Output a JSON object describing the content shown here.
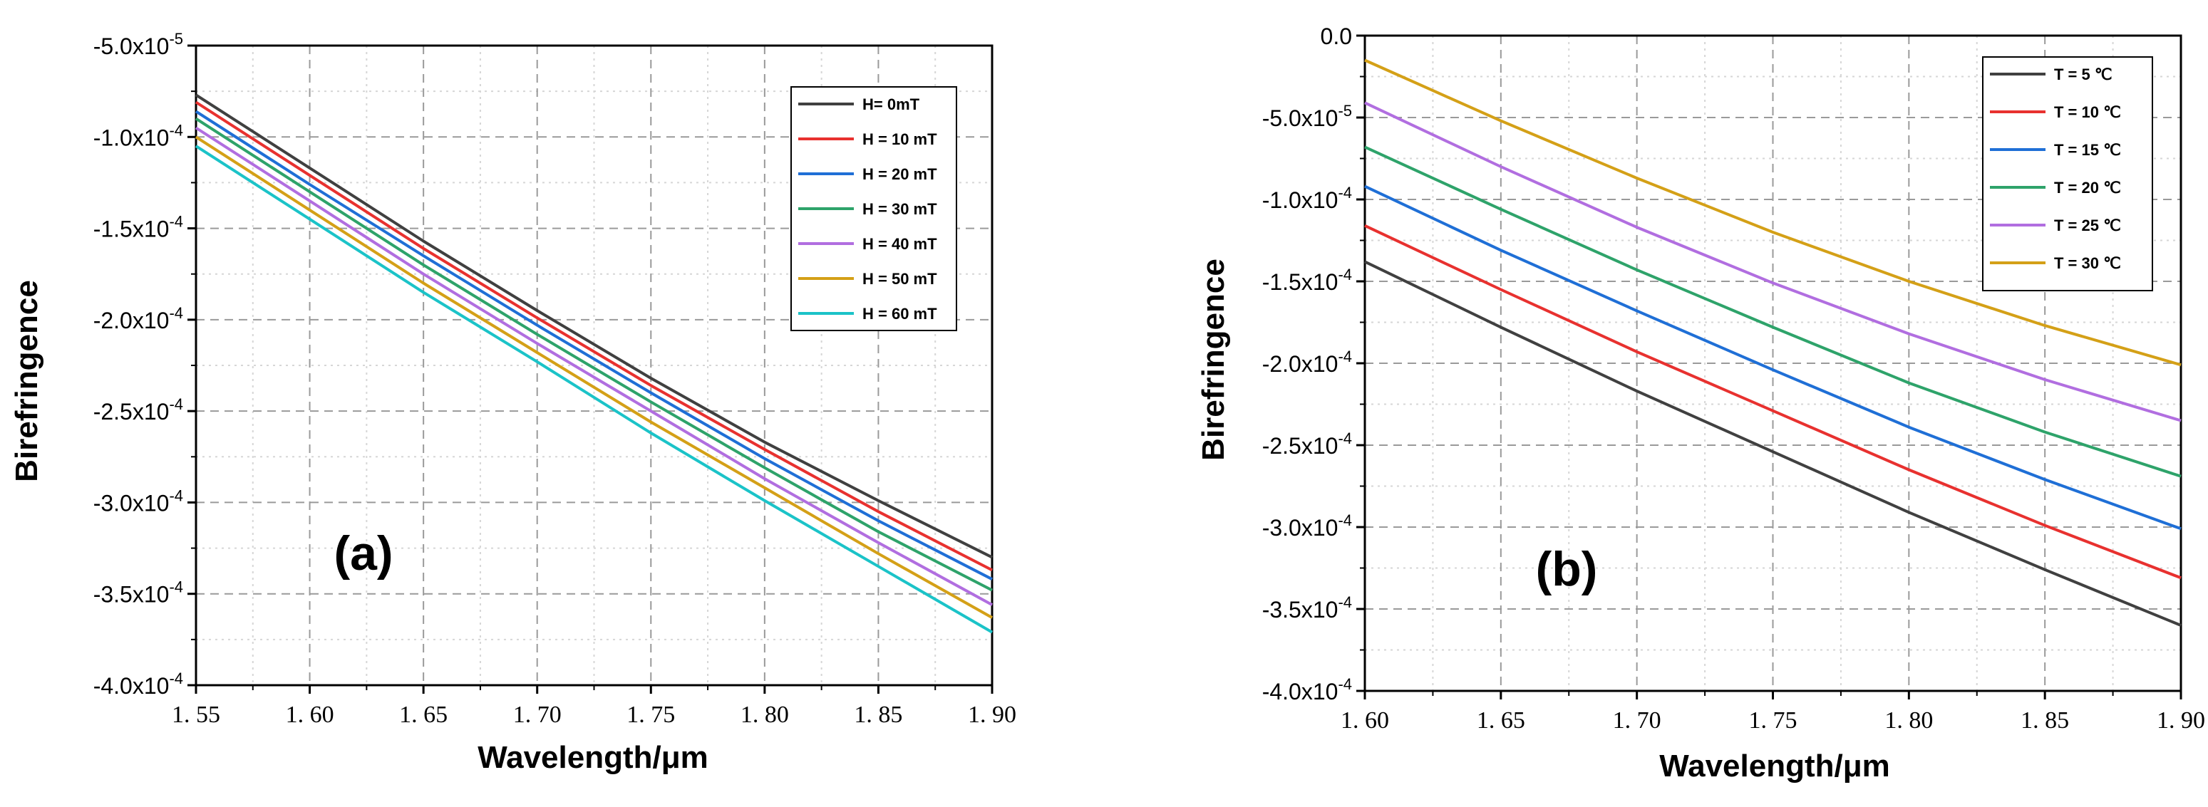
{
  "chart_data": [
    {
      "type": "line",
      "panel_label": "(a)",
      "xlabel": "Wavelength/μm",
      "ylabel": "Birefringence",
      "xlim": [
        1.55,
        1.9
      ],
      "ylim": [
        -0.0004,
        -5e-05
      ],
      "xticks": [
        1.55,
        1.6,
        1.65,
        1.7,
        1.75,
        1.8,
        1.85,
        1.9
      ],
      "xtick_labels": [
        "1. 55",
        "1. 60",
        "1. 65",
        "1. 70",
        "1. 75",
        "1. 80",
        "1. 85",
        "1. 90"
      ],
      "yticks": [
        -5e-05,
        -0.0001,
        -0.00015,
        -0.0002,
        -0.00025,
        -0.0003,
        -0.00035,
        -0.0004
      ],
      "ytick_labels": [
        "-5.0x10-5",
        "-1.0x10-4",
        "-1.5x10-4",
        "-2.0x10-4",
        "-2.5x10-4",
        "-3.0x10-4",
        "-3.5x10-4",
        "-4.0x10-4"
      ],
      "grid": true,
      "legend_position": "top-right",
      "series": [
        {
          "name": "H= 0mT",
          "color": "#404040",
          "x": [
            1.55,
            1.6,
            1.65,
            1.7,
            1.75,
            1.8,
            1.85,
            1.9
          ],
          "values": [
            -7.7e-05,
            -0.000117,
            -0.000157,
            -0.000195,
            -0.000232,
            -0.000267,
            -0.000299,
            -0.00033
          ]
        },
        {
          "name": "H = 10 mT",
          "color": "#e8312f",
          "x": [
            1.55,
            1.6,
            1.65,
            1.7,
            1.75,
            1.8,
            1.85,
            1.9
          ],
          "values": [
            -8.1e-05,
            -0.000121,
            -0.000161,
            -0.000199,
            -0.000236,
            -0.000271,
            -0.000305,
            -0.000337
          ]
        },
        {
          "name": "H = 20 mT",
          "color": "#1f6fd6",
          "x": [
            1.55,
            1.6,
            1.65,
            1.7,
            1.75,
            1.8,
            1.85,
            1.9
          ],
          "values": [
            -8.6e-05,
            -0.000126,
            -0.000165,
            -0.000203,
            -0.00024,
            -0.000276,
            -0.00031,
            -0.000342
          ]
        },
        {
          "name": "H = 30 mT",
          "color": "#2ea36a",
          "x": [
            1.55,
            1.6,
            1.65,
            1.7,
            1.75,
            1.8,
            1.85,
            1.9
          ],
          "values": [
            -9e-05,
            -0.00013,
            -0.00017,
            -0.000208,
            -0.000245,
            -0.000281,
            -0.000316,
            -0.000348
          ]
        },
        {
          "name": "H = 40 mT",
          "color": "#b16ee0",
          "x": [
            1.55,
            1.6,
            1.65,
            1.7,
            1.75,
            1.8,
            1.85,
            1.9
          ],
          "values": [
            -9.5e-05,
            -0.000135,
            -0.000175,
            -0.000213,
            -0.00025,
            -0.000287,
            -0.000322,
            -0.000356
          ]
        },
        {
          "name": "H = 50 mT",
          "color": "#d4a017",
          "x": [
            1.55,
            1.6,
            1.65,
            1.7,
            1.75,
            1.8,
            1.85,
            1.9
          ],
          "values": [
            -0.0001,
            -0.00014,
            -0.00018,
            -0.000218,
            -0.000256,
            -0.000292,
            -0.000328,
            -0.000363
          ]
        },
        {
          "name": "H = 60 mT",
          "color": "#1bc3c8",
          "x": [
            1.55,
            1.6,
            1.65,
            1.7,
            1.75,
            1.8,
            1.85,
            1.9
          ],
          "values": [
            -0.000105,
            -0.000145,
            -0.000185,
            -0.000223,
            -0.000262,
            -0.000299,
            -0.000335,
            -0.000371
          ]
        }
      ]
    },
    {
      "type": "line",
      "panel_label": "(b)",
      "xlabel": "Wavelength/μm",
      "ylabel": "Birefringence",
      "xlim": [
        1.6,
        1.9
      ],
      "ylim": [
        -0.0004,
        0.0
      ],
      "xticks": [
        1.6,
        1.65,
        1.7,
        1.75,
        1.8,
        1.85,
        1.9
      ],
      "xtick_labels": [
        "1. 60",
        "1. 65",
        "1. 70",
        "1. 75",
        "1. 80",
        "1. 85",
        "1. 90"
      ],
      "yticks": [
        0.0,
        -5e-05,
        -0.0001,
        -0.00015,
        -0.0002,
        -0.00025,
        -0.0003,
        -0.00035,
        -0.0004
      ],
      "ytick_labels": [
        "0.0",
        "-5.0x10-5",
        "-1.0x10-4",
        "-1.5x10-4",
        "-2.0x10-4",
        "-2.5x10-4",
        "-3.0x10-4",
        "-3.5x10-4",
        "-4.0x10-4"
      ],
      "grid": true,
      "legend_position": "top-right",
      "series": [
        {
          "name": "T = 5 ℃",
          "color": "#404040",
          "x": [
            1.6,
            1.65,
            1.7,
            1.75,
            1.8,
            1.85,
            1.9
          ],
          "values": [
            -0.000138,
            -0.000178,
            -0.000217,
            -0.000254,
            -0.000291,
            -0.000326,
            -0.00036
          ]
        },
        {
          "name": "T = 10 ℃",
          "color": "#e8312f",
          "x": [
            1.6,
            1.65,
            1.7,
            1.75,
            1.8,
            1.85,
            1.9
          ],
          "values": [
            -0.000116,
            -0.000155,
            -0.000193,
            -0.000229,
            -0.000265,
            -0.000299,
            -0.000331
          ]
        },
        {
          "name": "T = 15 ℃",
          "color": "#1f6fd6",
          "x": [
            1.6,
            1.65,
            1.7,
            1.75,
            1.8,
            1.85,
            1.9
          ],
          "values": [
            -9.2e-05,
            -0.000131,
            -0.000168,
            -0.000204,
            -0.000239,
            -0.000271,
            -0.000301
          ]
        },
        {
          "name": "T = 20 ℃",
          "color": "#2ea36a",
          "x": [
            1.6,
            1.65,
            1.7,
            1.75,
            1.8,
            1.85,
            1.9
          ],
          "values": [
            -6.8e-05,
            -0.000106,
            -0.000143,
            -0.000178,
            -0.000212,
            -0.000242,
            -0.000269
          ]
        },
        {
          "name": "T = 25 ℃",
          "color": "#b16ee0",
          "x": [
            1.6,
            1.65,
            1.7,
            1.75,
            1.8,
            1.85,
            1.9
          ],
          "values": [
            -4.1e-05,
            -8e-05,
            -0.000117,
            -0.000151,
            -0.000182,
            -0.00021,
            -0.000235
          ]
        },
        {
          "name": "T = 30 ℃",
          "color": "#d4a017",
          "x": [
            1.6,
            1.65,
            1.7,
            1.75,
            1.8,
            1.85,
            1.9
          ],
          "values": [
            -1.5e-05,
            -5.2e-05,
            -8.7e-05,
            -0.00012,
            -0.00015,
            -0.000177,
            -0.000201
          ]
        }
      ]
    }
  ]
}
